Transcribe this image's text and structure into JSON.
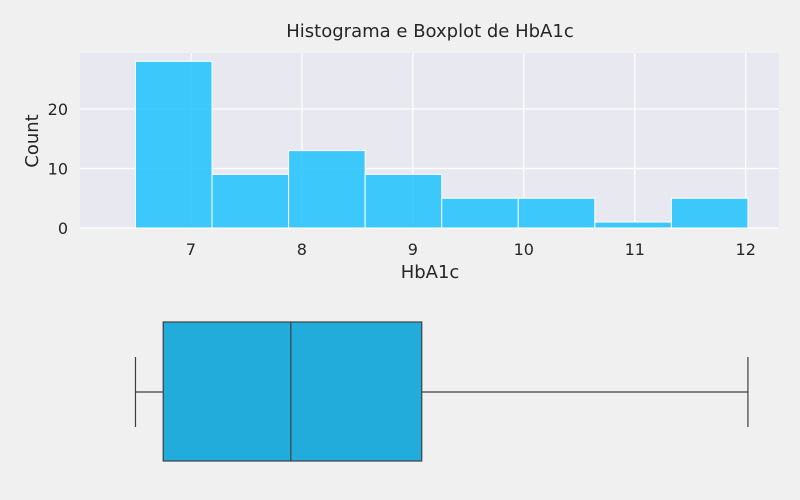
{
  "chart_data": [
    {
      "type": "bar",
      "subtype": "histogram",
      "title": "Histograma e Boxplot de HbA1c",
      "xlabel": "HbA1c",
      "ylabel": "Count",
      "bin_edges": [
        6.5,
        7.19,
        7.88,
        8.57,
        9.26,
        9.95,
        10.64,
        11.33,
        12.02
      ],
      "values": [
        28,
        9,
        13,
        9,
        5,
        5,
        1,
        5
      ],
      "xlim": [
        6.0,
        12.3
      ],
      "ylim": [
        0,
        29.4
      ],
      "xticks": [
        7,
        8,
        9,
        10,
        11,
        12
      ],
      "yticks": [
        0,
        10,
        20
      ],
      "grid": true,
      "bar_color": "#29c4fb",
      "plot_background": "#e8e8f0"
    },
    {
      "type": "boxplot",
      "whisker_low": 6.5,
      "q1": 6.75,
      "median": 7.9,
      "q3": 9.08,
      "whisker_high": 12.02,
      "box_color": "#21acdc",
      "line_color": "#3f3f3f"
    }
  ]
}
